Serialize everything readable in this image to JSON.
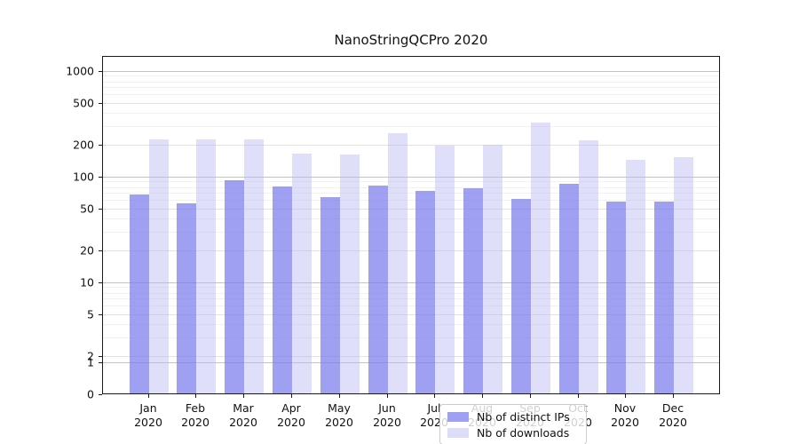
{
  "title": "NanoStringQCPro 2020",
  "legend": {
    "items": [
      {
        "label": "Nb of distinct IPs",
        "color_key": "ips"
      },
      {
        "label": "Nb of downloads",
        "color_key": "downloads"
      }
    ]
  },
  "y_axis": {
    "tick_labels": [
      "1000",
      "500",
      "200",
      "100",
      "50",
      "20",
      "10",
      "5",
      "2",
      "1",
      "0"
    ],
    "tick_values": [
      1000,
      500,
      200,
      100,
      50,
      20,
      10,
      5,
      2,
      1,
      0
    ]
  },
  "x_axis": {
    "months": [
      "Jan",
      "Feb",
      "Mar",
      "Apr",
      "May",
      "Jun",
      "Jul",
      "Aug",
      "Sep",
      "Oct",
      "Nov",
      "Dec"
    ],
    "year": "2020"
  },
  "colors": {
    "ips_bar": "rgba(124,124,238,0.72)",
    "downloads_bar": "rgba(183,183,242,0.45)",
    "legend_ips": "#9f9ff3",
    "legend_downloads": "#ddddf8",
    "grid_power10": "#c3c3c3",
    "grid_labeled": "#e2e2e2",
    "grid_minor": "#f1f1f1"
  },
  "chart_data": {
    "type": "bar",
    "title": "NanoStringQCPro 2020",
    "xlabel": "",
    "ylabel": "",
    "yscale": "symlog",
    "ylim": [
      0,
      1400
    ],
    "y_ticks": [
      0,
      1,
      2,
      5,
      10,
      20,
      50,
      100,
      200,
      500,
      1000
    ],
    "grid": true,
    "legend_position": "lower center",
    "categories": [
      "Jan 2020",
      "Feb 2020",
      "Mar 2020",
      "Apr 2020",
      "May 2020",
      "Jun 2020",
      "Jul 2020",
      "Aug 2020",
      "Sep 2020",
      "Oct 2020",
      "Nov 2020",
      "Dec 2020"
    ],
    "series": [
      {
        "name": "Nb of distinct IPs",
        "values": [
          68,
          56,
          92,
          81,
          64,
          82,
          74,
          78,
          62,
          86,
          58,
          58
        ]
      },
      {
        "name": "Nb of downloads",
        "values": [
          224,
          225,
          226,
          166,
          163,
          257,
          196,
          200,
          326,
          221,
          145,
          154
        ]
      }
    ]
  }
}
